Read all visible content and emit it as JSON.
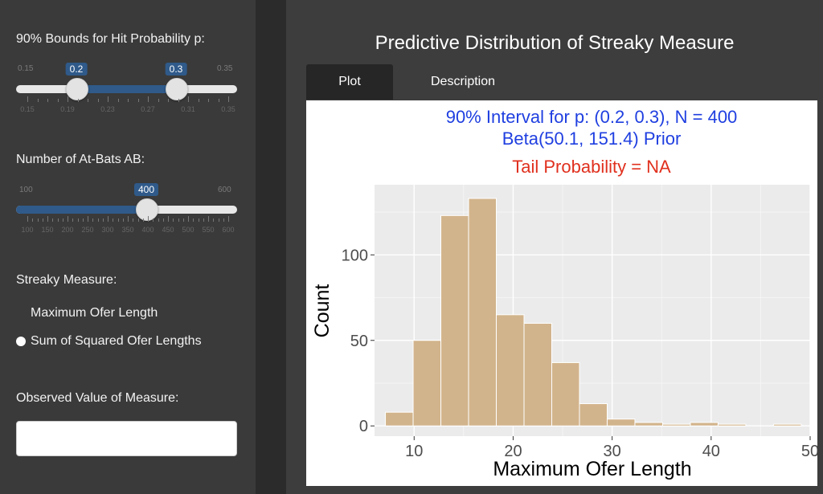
{
  "sidebar": {
    "bounds_label": "90% Bounds for Hit Probability p:",
    "bounds_slider": {
      "min": 0.15,
      "max": 0.35,
      "min_label": "0.15",
      "max_label": "0.35",
      "low": 0.2,
      "high": 0.3,
      "low_label": "0.2",
      "high_label": "0.3",
      "ticks": [
        "0.15",
        "0.19",
        "0.23",
        "0.27",
        "0.31",
        "0.35"
      ]
    },
    "ab_label": "Number of At-Bats AB:",
    "ab_slider": {
      "min": 100,
      "max": 600,
      "min_label": "100",
      "max_label": "600",
      "value": 400,
      "value_label": "400",
      "ticks": [
        "100",
        "150",
        "200",
        "250",
        "300",
        "350",
        "400",
        "450",
        "500",
        "550",
        "600"
      ]
    },
    "measure_label": "Streaky Measure:",
    "measure_options": [
      "Maximum Ofer Length",
      "Sum of Squared Ofer Lengths"
    ],
    "observed_label": "Observed Value of Measure:",
    "observed_value": ""
  },
  "main": {
    "title": "Predictive Distribution of Streaky Measure",
    "tabs": [
      {
        "label": "Plot",
        "active": true
      },
      {
        "label": "Description",
        "active": false
      }
    ]
  },
  "chart_data": {
    "type": "bar",
    "title": "90% Interval for p: (0.2, 0.3), N = 400",
    "subtitle": "Beta(50.1, 151.4) Prior",
    "subtitle2": "Tail Probability = NA",
    "xlabel": "Maximum Ofer Length",
    "ylabel": "Count",
    "xlim": [
      6,
      50
    ],
    "ylim": [
      -6,
      141
    ],
    "xticks": [
      10,
      20,
      30,
      40,
      50
    ],
    "yticks": [
      0,
      50,
      100
    ],
    "bin_width": 2.8,
    "bin_starts": [
      7.1,
      9.9,
      12.7,
      15.5,
      18.3,
      21.1,
      23.9,
      26.7,
      29.5,
      32.3,
      35.1,
      37.9,
      40.7,
      43.5,
      46.3
    ],
    "values": [
      8,
      50,
      123,
      133,
      65,
      60,
      37,
      13,
      4,
      2,
      1,
      2,
      1,
      0,
      1
    ],
    "bar_color": "#d2b48c",
    "title_color": "#1f3fe0",
    "subtitle2_color": "#e0301e"
  }
}
